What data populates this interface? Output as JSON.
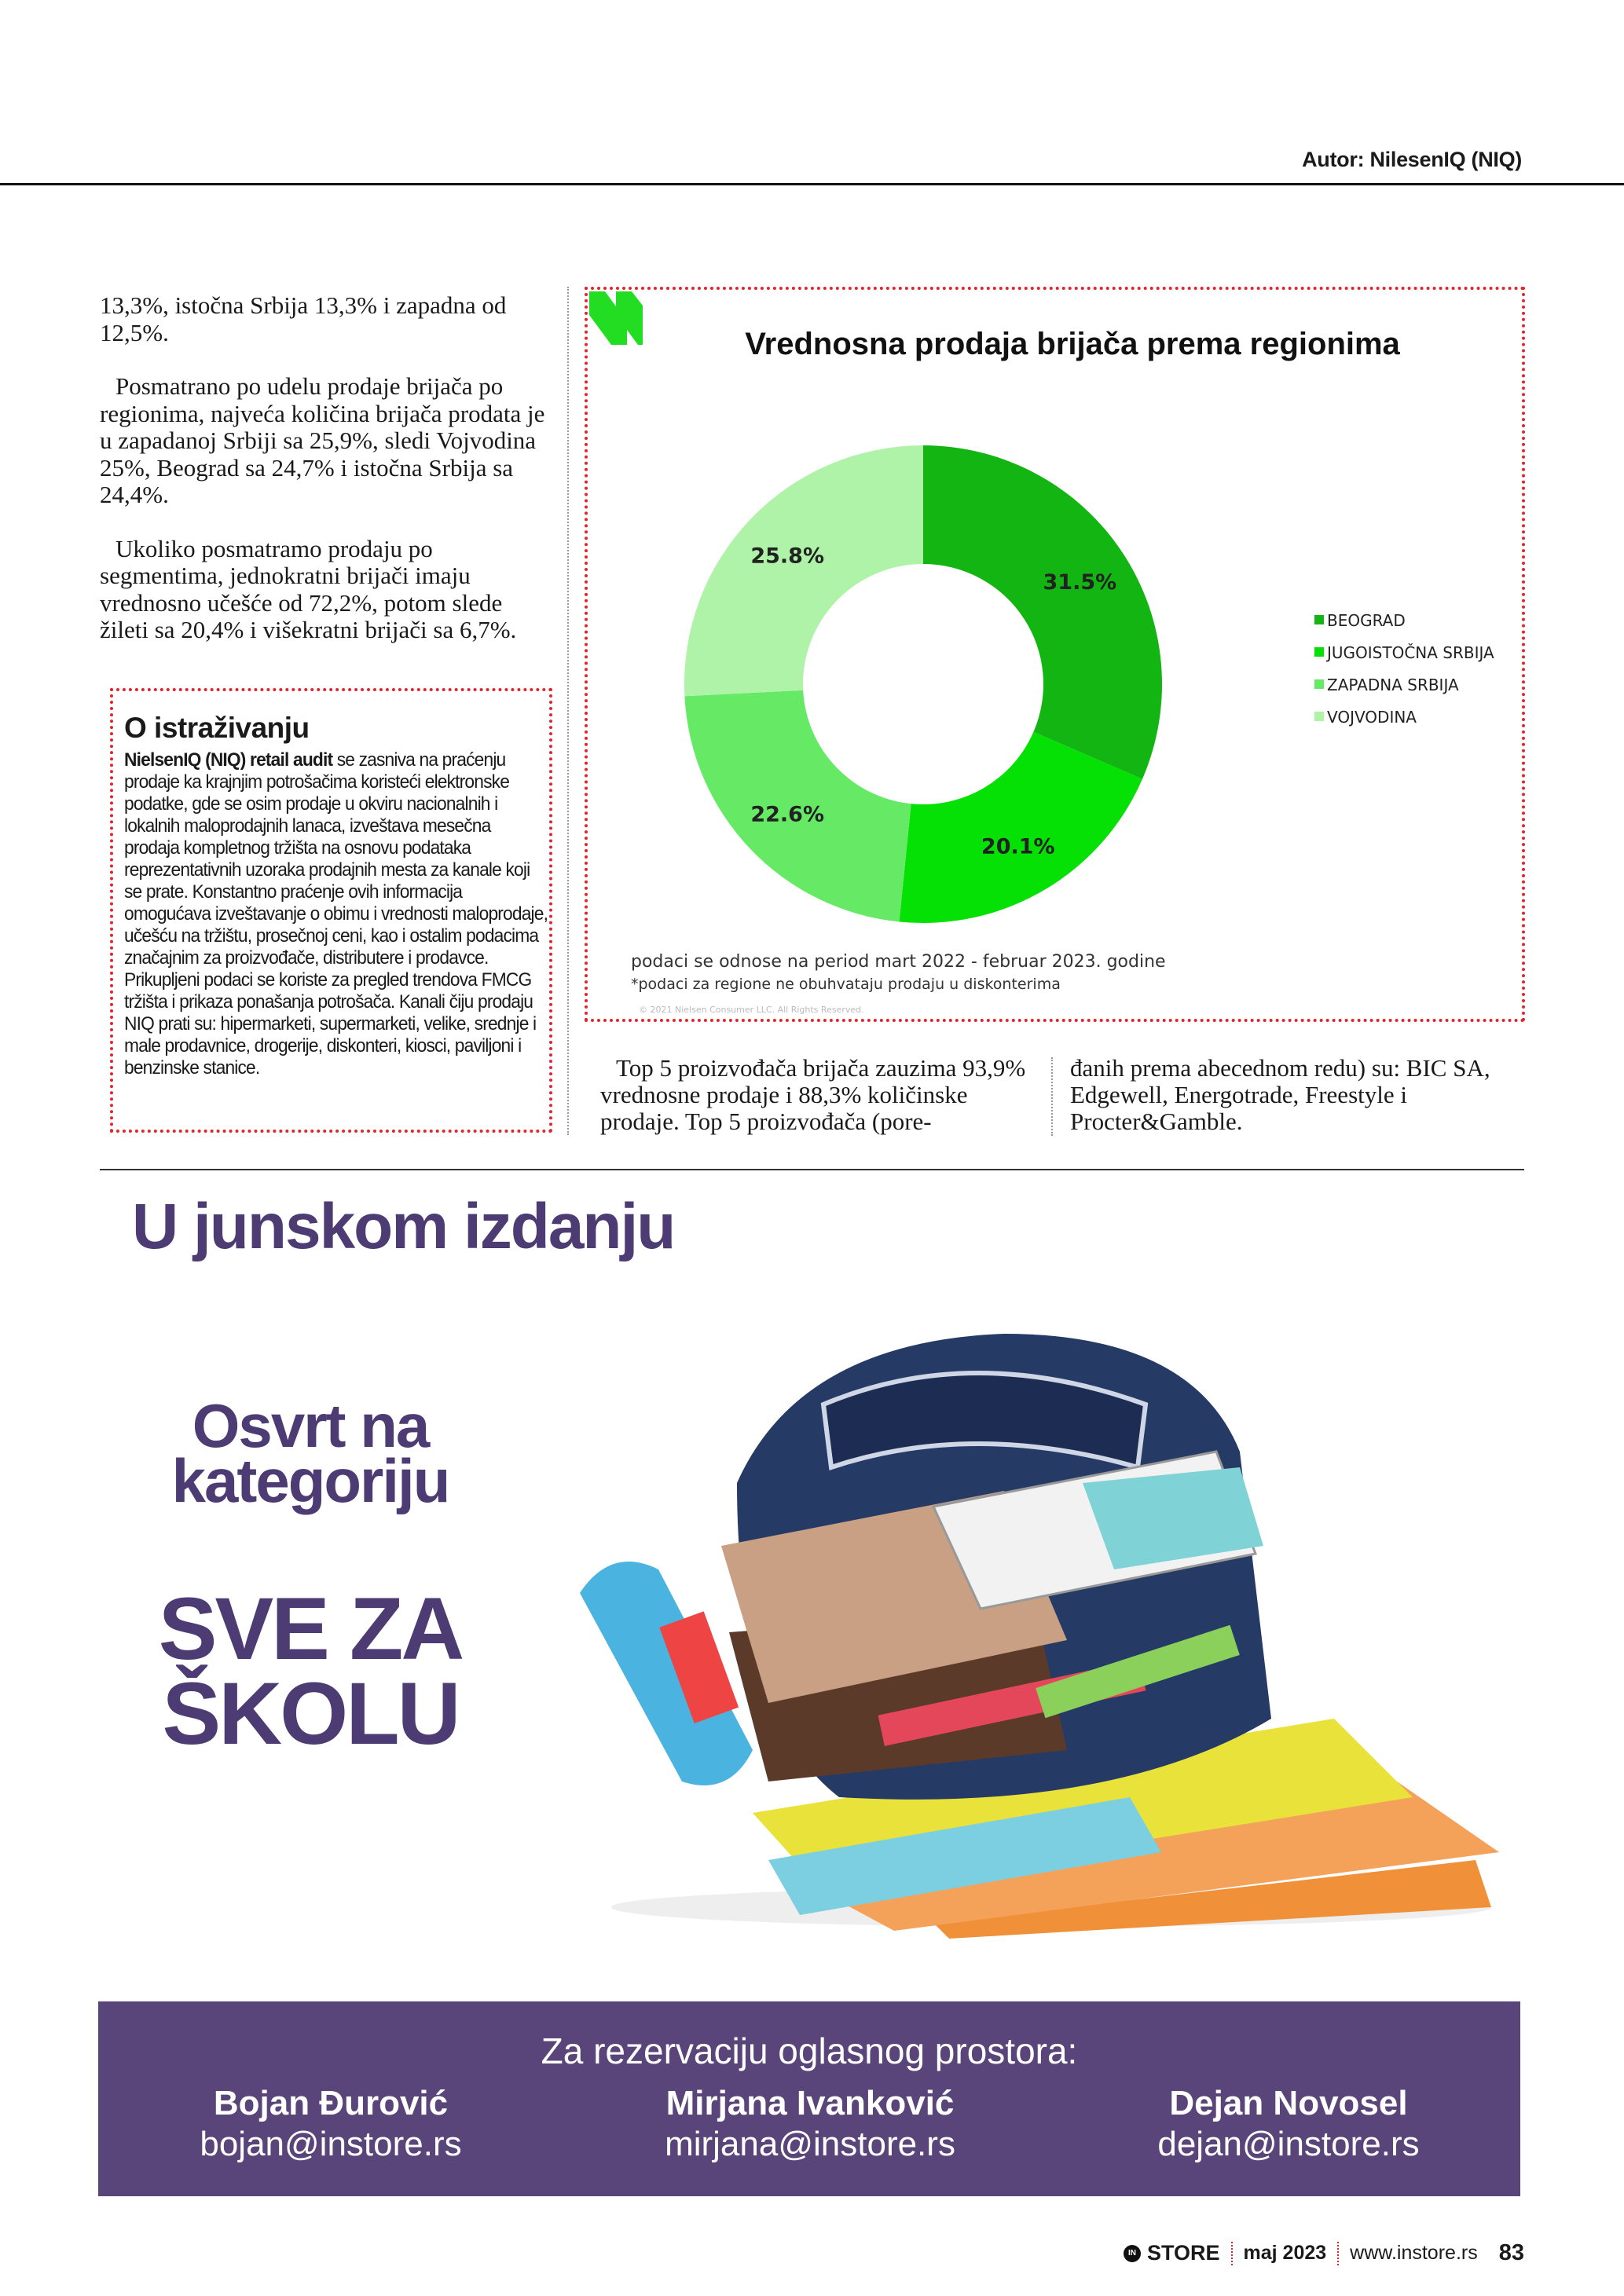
{
  "header": {
    "author": "Autor: NilesenIQ (NIQ)"
  },
  "left_column": {
    "paragraphs": [
      "13,3%, istočna Srbija 13,3% i zapadna od 12,5%.",
      "Posmatrano po udelu prodaje brijača po regionima, najveća količina brijača prodata je u zapadanoj Srbiji sa 25,9%, sledi Vojvodina 25%, Beograd sa 24,7% i istočna Srbija sa 24,4%.",
      "Ukoliko posmatramo prodaju po segmentima, jednokratni brijači imaju vrednosno učešće od 72,2%, potom slede žileti sa 20,4% i višekratni brijači sa 6,7%."
    ]
  },
  "info_box": {
    "title": "O istraživanju",
    "lead_bold": "NielsenIQ (NIQ) retail audit",
    "body": " se zasniva na praćenju prodaje ka krajnjim potrošačima koristeći elektronske podatke, gde se osim proda­je u okviru nacionalnih i lokalnih maloprodajnih lanaca, izveštava mesečna prodaja kompletnog tržišta na osnovu podataka reprezentativnih uzoraka prodajnih mesta za kanale koji se prate. Konstantno praćenje ovih informacija omogućava izveštavanje o obimu i vrednosti maloprodaje, učešću na tržištu, prosečnoj ceni, kao i ostalim podacima značajnim za proizvođače, distributere i prodavce. Prikupljeni podaci se koriste za pregled trendova FMCG tržišta i prikaza ponašanja potrošača. Kanali čiju prodaju NIQ prati su: hipermarketi, supermarketi, velike, srednje i male prodavnice, drogerije, diskonteri, kiosci, paviljoni i benzinske stanice."
  },
  "chart_data": {
    "type": "pie",
    "donut": true,
    "title": "Vrednosna prodaja brijača prema regionima",
    "categories": [
      "BEOGRAD",
      "JUGOISTOČNA SRBIJA",
      "ZAPADNA SRBIJA",
      "VOJVODINA"
    ],
    "values": [
      31.5,
      20.1,
      22.6,
      25.8
    ],
    "data_labels": [
      "31.5%",
      "20.1%",
      "22.6%",
      "25.8%"
    ],
    "colors": [
      "#12b512",
      "#05e005",
      "#66ea66",
      "#aef3a8"
    ],
    "legend_position": "right",
    "notes": [
      "podaci se odnose na period mart 2022 - februar 2023. godine",
      "*podaci za regione ne obuhvataju prodaju u diskonterima"
    ],
    "copyright": "© 2021 Nielsen Consumer LLC. All Rights Reserved."
  },
  "below_chart": {
    "col1": "Top 5 proizvođača brijača zauzima 93,9% vrednosne prodaje i 88,3% količinske prodaje. Top 5 proizvođača (pore-",
    "col2": "đanih prema abecednom redu) su: BIC SA, Edgewell, Energotrade, Freestyle i Procter&Gamble."
  },
  "promo": {
    "heading": "U junskom izdanju",
    "sub1": "Osvrt na",
    "sub2": "kategoriju",
    "topic1": "SVE ZA",
    "topic2": "ŠKOLU"
  },
  "banner": {
    "title": "Za rezervaciju oglasnog prostora:",
    "contacts": [
      {
        "name": "Bojan Đurović",
        "email": "bojan@instore.rs"
      },
      {
        "name": "Mirjana Ivanković",
        "email": "mirjana@instore.rs"
      },
      {
        "name": "Dejan Novosel",
        "email": "dejan@instore.rs"
      }
    ],
    "color": "#594579"
  },
  "footer": {
    "brand": "STORE",
    "issue": "maj 2023",
    "site": "www.instore.rs",
    "page": "83"
  }
}
